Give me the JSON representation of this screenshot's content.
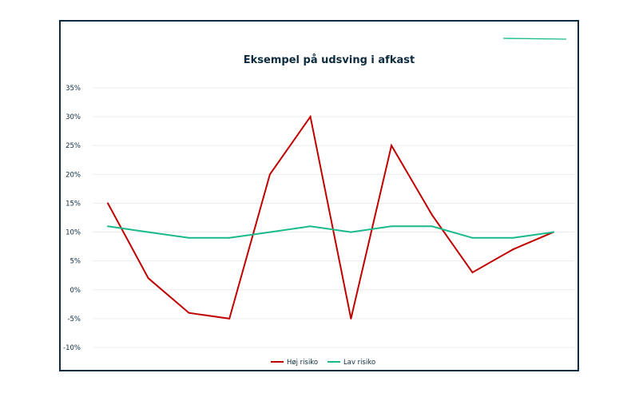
{
  "chart_data": {
    "type": "line",
    "title": "Eksempel på udsving i afkast",
    "xlabel": "",
    "ylabel": "",
    "x": [
      1,
      2,
      3,
      4,
      5,
      6,
      7,
      8,
      9,
      10,
      11,
      12
    ],
    "ylim": [
      -10,
      35
    ],
    "yticks": [
      35,
      30,
      25,
      20,
      15,
      10,
      5,
      0,
      -5,
      -10
    ],
    "ytick_labels": [
      "35%",
      "30%",
      "25%",
      "20%",
      "15%",
      "10%",
      "5%",
      "0%",
      "-5%",
      "-10%"
    ],
    "grid": true,
    "legend_position": "bottom-center",
    "series": [
      {
        "name": "Høj risiko",
        "color": "#c00000",
        "values": [
          15,
          2,
          -4,
          -5,
          20,
          30,
          -5,
          25,
          13,
          3,
          7,
          10
        ]
      },
      {
        "name": "Lav risiko",
        "color": "#1ab98a",
        "values": [
          11,
          10,
          9,
          9,
          10,
          11,
          10,
          11,
          11,
          9,
          9,
          10
        ]
      }
    ]
  },
  "decoration": {
    "accent_color": "#1ab98a",
    "frame_color": "#0d2b3e"
  }
}
